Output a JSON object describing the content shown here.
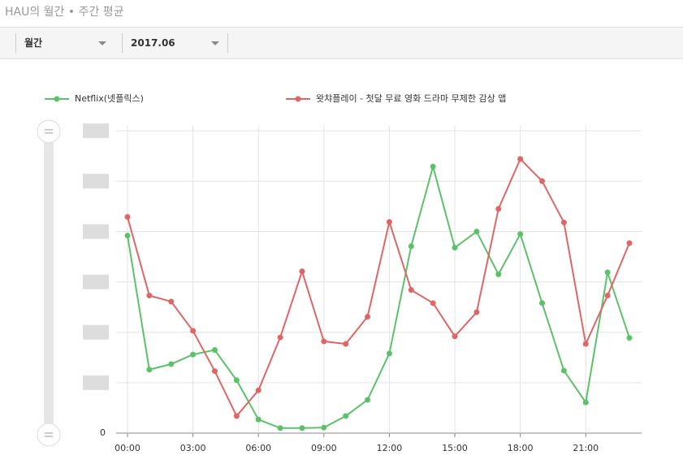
{
  "header": {
    "title": "HAU의 월간 • 주간 평균"
  },
  "filters": [
    "월간",
    "2017.06"
  ],
  "chart_data": {
    "type": "line",
    "categories": [
      "00:00",
      null,
      null,
      "03:00",
      null,
      null,
      "06:00",
      null,
      null,
      "09:00",
      null,
      null,
      "12:00",
      null,
      null,
      "15:00",
      null,
      null,
      "18:00",
      null,
      null,
      "21:00",
      null,
      null
    ],
    "series": [
      {
        "name": "Netflix(넷플릭스)",
        "color": "#5cc26a",
        "values": [
          3.92,
          1.26,
          1.37,
          1.56,
          1.65,
          1.05,
          0.27,
          0.1,
          0.1,
          0.11,
          0.34,
          0.66,
          1.58,
          3.71,
          5.29,
          3.68,
          4.0,
          3.15,
          3.95,
          2.58,
          1.24,
          0.61,
          3.19,
          1.89
        ]
      },
      {
        "name": "왓챠플레이 - 첫달 무료 영화 드라마 무제한 감상 앱",
        "color": "#e06666",
        "values": [
          4.29,
          2.73,
          2.61,
          2.03,
          1.23,
          0.34,
          0.85,
          1.9,
          3.21,
          1.82,
          1.77,
          2.31,
          4.19,
          2.84,
          2.58,
          1.92,
          2.4,
          4.45,
          5.44,
          5.0,
          4.18,
          1.77,
          2.73,
          3.77
        ]
      }
    ],
    "ylim": [
      0,
      6.1
    ],
    "yticks": [
      0,
      {
        "value": 1,
        "label": null
      },
      {
        "value": 2,
        "label": null
      },
      {
        "value": 3,
        "label": null
      },
      {
        "value": 4,
        "label": null
      },
      {
        "value": 5,
        "label": null
      },
      {
        "value": 6,
        "label": null
      }
    ],
    "grid": true
  }
}
